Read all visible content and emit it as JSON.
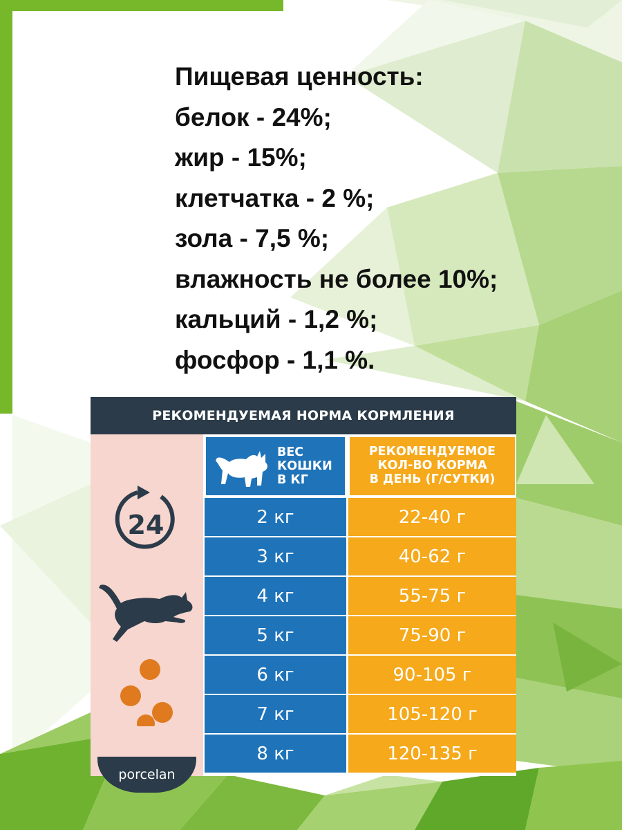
{
  "nutrition": {
    "lines": [
      "Пищевая ценность:",
      "белок - 24%;",
      "жир - 15%;",
      "клетчатка - 2 %;",
      "зола - 7,5 %;",
      "влажность не более 10%;",
      "кальций - 1,2 %;",
      "фосфор - 1,1 %."
    ]
  },
  "feeding_table": {
    "title": "РЕКОМЕНДУЕМАЯ НОРМА КОРМЛЕНИЯ",
    "weight_header": [
      "ВЕС",
      "КОШКИ",
      "В КГ"
    ],
    "amount_header": [
      "РЕКОМЕНДУЕМОЕ",
      "КОЛ-ВО КОРМА",
      "В ДЕНЬ (Г/СУТКИ)"
    ],
    "rows": [
      {
        "weight": "2 кг",
        "amount": "22-40 г"
      },
      {
        "weight": "3 кг",
        "amount": "40-62 г"
      },
      {
        "weight": "4 кг",
        "amount": "55-75 г"
      },
      {
        "weight": "5 кг",
        "amount": "75-90 г"
      },
      {
        "weight": "6 кг",
        "amount": "90-105 г"
      },
      {
        "weight": "7 кг",
        "amount": "105-120 г"
      },
      {
        "weight": "8 кг",
        "amount": "120-135 г"
      }
    ],
    "clock_badge": "24",
    "brand": "porcelan",
    "icons": [
      "clock-24-icon",
      "jumping-cat-icon",
      "kibble-bowl-icon",
      "sitting-cat-icon"
    ]
  },
  "colors": {
    "header_dark": "#2b3b49",
    "weight_blue": "#1f74b9",
    "amount_orange": "#f5a91b",
    "left_panel_pink": "#f7d6cf",
    "frame_green": "#76b82a",
    "kibble_orange": "#e07a1f"
  }
}
